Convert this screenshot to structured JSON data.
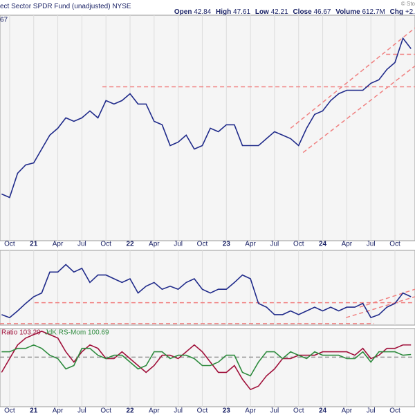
{
  "header": {
    "fund": "ect Sector SPDR Fund (unadjusted)",
    "exchange": "NYSE",
    "credit": "© Sto",
    "quote": [
      {
        "label": "Open",
        "value": "42.84"
      },
      {
        "label": "High",
        "value": "47.61"
      },
      {
        "label": "Low",
        "value": "42.21"
      },
      {
        "label": "Close",
        "value": "46.67"
      },
      {
        "label": "Volume",
        "value": "612.7M"
      },
      {
        "label": "Chg",
        "value": "+2."
      }
    ]
  },
  "chart_data": [
    {
      "type": "line",
      "corner_label": "67",
      "x": [
        0,
        1,
        2,
        3,
        4,
        5,
        6,
        7,
        8,
        9,
        10,
        11,
        12,
        13,
        14,
        15,
        16,
        17,
        18,
        19,
        20,
        21,
        22,
        23,
        24,
        25,
        26,
        27,
        28,
        29,
        30,
        31,
        32,
        33,
        34,
        35,
        36,
        37,
        38,
        39,
        40,
        41,
        42,
        43,
        44,
        45,
        46,
        47,
        48,
        49,
        50,
        51
      ],
      "series": [
        {
          "color": "#1f2a8a",
          "values": [
            25.94,
            25.47,
            28.76,
            29.88,
            30.16,
            32.04,
            33.92,
            34.86,
            36.27,
            35.8,
            36.27,
            37.21,
            36.27,
            38.62,
            38.15,
            38.62,
            39.55,
            38.15,
            38.15,
            35.8,
            35.33,
            32.51,
            32.98,
            33.92,
            32.04,
            32.51,
            34.86,
            34.39,
            35.33,
            35.33,
            32.51,
            32.51,
            32.51,
            33.45,
            34.39,
            33.92,
            33.45,
            32.51,
            34.86,
            36.74,
            37.21,
            38.62,
            39.55,
            40.02,
            40.02,
            40.02,
            40.96,
            41.43,
            42.84,
            43.78,
            47.07,
            45.66
          ]
        }
      ],
      "xlim": [
        -0.2,
        51.5
      ],
      "ylim": [
        19.6,
        50.2
      ],
      "xticks": [
        {
          "value": 1,
          "label": "Oct"
        },
        {
          "value": 4,
          "label": "21"
        },
        {
          "value": 7,
          "label": "Apr"
        },
        {
          "value": 10,
          "label": "Jul"
        },
        {
          "value": 13,
          "label": "Oct"
        },
        {
          "value": 16,
          "label": "22"
        },
        {
          "value": 19,
          "label": "Apr"
        },
        {
          "value": 22,
          "label": "Jul"
        },
        {
          "value": 25,
          "label": "Oct"
        },
        {
          "value": 28,
          "label": "23"
        },
        {
          "value": 31,
          "label": "Apr"
        },
        {
          "value": 34,
          "label": "Jul"
        },
        {
          "value": 37,
          "label": "Oct"
        },
        {
          "value": 40,
          "label": "24"
        },
        {
          "value": 43,
          "label": "Apr"
        },
        {
          "value": 46,
          "label": "Jul"
        },
        {
          "value": 49,
          "label": "Oct"
        }
      ],
      "trendlines": [
        {
          "x": [
            12.56,
            51.5
          ],
          "y": [
            40.49,
            40.49
          ]
        },
        {
          "x": [
            47.9,
            51.5
          ],
          "y": [
            44.9,
            44.9
          ]
        },
        {
          "x": [
            37.56,
            51.5
          ],
          "y": [
            31.57,
            43.31
          ]
        },
        {
          "x": [
            36,
            51.5
          ],
          "y": [
            34.86,
            48.48
          ]
        }
      ],
      "trend_color": "#f08080",
      "grid": true
    },
    {
      "type": "line",
      "x": [
        0,
        1,
        2,
        3,
        4,
        5,
        6,
        7,
        8,
        9,
        10,
        11,
        12,
        13,
        14,
        15,
        16,
        17,
        18,
        19,
        20,
        21,
        22,
        23,
        24,
        25,
        26,
        27,
        28,
        29,
        30,
        31,
        32,
        33,
        34,
        35,
        36,
        37,
        38,
        39,
        40,
        41,
        42,
        43,
        44,
        45,
        46,
        47,
        48,
        49,
        50,
        51
      ],
      "series": [
        {
          "color": "#1f2a8a",
          "values": [
            14,
            10,
            19,
            29,
            38,
            43,
            71,
            71,
            81,
            71,
            76,
            57,
            67,
            67,
            62,
            57,
            62,
            43,
            52,
            57,
            48,
            52,
            48,
            57,
            62,
            48,
            43,
            48,
            48,
            57,
            67,
            62,
            29,
            24,
            14,
            14,
            19,
            14,
            19,
            24,
            19,
            24,
            19,
            24,
            24,
            29,
            10,
            14,
            24,
            29,
            43,
            38
          ]
        }
      ],
      "xlim": [
        -0.2,
        51.5
      ],
      "ylim": [
        0,
        100
      ],
      "trendlines": [
        {
          "x": [
            4.1,
            51.5
          ],
          "y": [
            30,
            30
          ]
        },
        {
          "x": [
            -0.2,
            46.4
          ],
          "y": [
            2,
            2
          ]
        },
        {
          "x": [
            42.9,
            51.5
          ],
          "y": [
            10,
            38
          ]
        },
        {
          "x": [
            44.6,
            51.5
          ],
          "y": [
            24,
            48
          ]
        }
      ],
      "trend_color": "#f08080",
      "grid": true
    },
    {
      "type": "line",
      "x": [
        0,
        1,
        2,
        3,
        4,
        5,
        6,
        7,
        8,
        9,
        10,
        11,
        12,
        13,
        14,
        15,
        16,
        17,
        18,
        19,
        20,
        21,
        22,
        23,
        24,
        25,
        26,
        27,
        28,
        29,
        30,
        31,
        32,
        33,
        34,
        35,
        36,
        37,
        38,
        39,
        40,
        41,
        42,
        43,
        44,
        45,
        46,
        47,
        48,
        49,
        50,
        51
      ],
      "series": [
        {
          "name": "Ratio 103.20",
          "color": "#a0103a",
          "values": [
            96.0,
            99.6,
            103.2,
            105.0,
            105.9,
            106.8,
            105.9,
            105.0,
            101.4,
            98.7,
            101.4,
            103.2,
            102.3,
            99.6,
            99.6,
            101.4,
            99.6,
            97.8,
            96.0,
            97.8,
            100.5,
            100.5,
            99.6,
            101.4,
            103.2,
            101.4,
            98.7,
            96.0,
            96.0,
            97.8,
            94.2,
            91.5,
            92.4,
            95.1,
            96.9,
            99.6,
            99.6,
            100.5,
            100.5,
            100.5,
            101.4,
            101.4,
            101.4,
            101.4,
            100.5,
            102.3,
            99.6,
            100.5,
            102.3,
            102.3,
            103.2,
            103.2
          ]
        },
        {
          "name": "JdK RS-Mom 100.69",
          "color": "#2e8b3e",
          "values": [
            101.4,
            101.4,
            102.3,
            102.3,
            103.2,
            102.3,
            100.5,
            99.6,
            96.9,
            97.8,
            102.3,
            102.3,
            100.5,
            99.6,
            100.5,
            100.5,
            98.7,
            96.9,
            97.8,
            101.4,
            101.4,
            99.6,
            100.5,
            100.5,
            99.6,
            97.8,
            97.8,
            98.7,
            100.5,
            100.5,
            96.0,
            95.1,
            98.7,
            101.4,
            101.4,
            99.6,
            101.4,
            100.5,
            99.6,
            101.4,
            100.5,
            100.5,
            100.5,
            99.6,
            99.6,
            101.4,
            98.7,
            101.4,
            101.4,
            101.4,
            100.5,
            100.7
          ]
        }
      ],
      "xlim": [
        -0.2,
        51.5
      ],
      "ylim": [
        87,
        107.5
      ],
      "xticks": [
        {
          "value": 1,
          "label": "Oct"
        },
        {
          "value": 4,
          "label": "21"
        },
        {
          "value": 7,
          "label": "Apr"
        },
        {
          "value": 10,
          "label": "Jul"
        },
        {
          "value": 13,
          "label": "Oct"
        },
        {
          "value": 16,
          "label": "22"
        },
        {
          "value": 19,
          "label": "Apr"
        },
        {
          "value": 22,
          "label": "Jul"
        },
        {
          "value": 25,
          "label": "Oct"
        },
        {
          "value": 28,
          "label": "23"
        },
        {
          "value": 31,
          "label": "Apr"
        },
        {
          "value": 34,
          "label": "Jul"
        },
        {
          "value": 37,
          "label": "Oct"
        },
        {
          "value": 40,
          "label": "24"
        },
        {
          "value": 43,
          "label": "Apr"
        },
        {
          "value": 46,
          "label": "Jul"
        },
        {
          "value": 49,
          "label": "Oct"
        }
      ],
      "trendlines": [
        {
          "x": [
            -0.2,
            51.5
          ],
          "y": [
            100,
            100
          ]
        }
      ],
      "trend_color": "#999999",
      "grid": true
    }
  ]
}
